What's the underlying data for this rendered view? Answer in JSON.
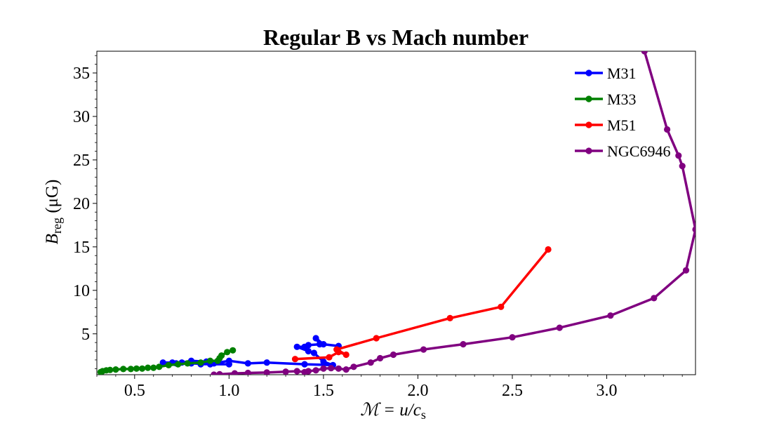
{
  "chart_data": {
    "type": "line",
    "title": "Regular B vs Mach number",
    "xlabel": "ℳ = u/c",
    "xlabel_sub": "s",
    "ylabel": "B",
    "ylabel_sub": "reg",
    "ylabel_unit": " (μG)",
    "xlim": [
      0.3,
      3.47
    ],
    "ylim": [
      0.3,
      37.5
    ],
    "x_ticks": [
      0.5,
      1.0,
      1.5,
      2.0,
      2.5,
      3.0
    ],
    "x_tick_labels": [
      "0.5",
      "1.0",
      "1.5",
      "2.0",
      "2.5",
      "3.0"
    ],
    "y_ticks": [
      5,
      10,
      15,
      20,
      25,
      30,
      35
    ],
    "y_tick_labels": [
      "5",
      "10",
      "15",
      "20",
      "25",
      "30",
      "35"
    ],
    "grid": false,
    "legend_position": "top-right",
    "series": [
      {
        "name": "M31",
        "color": "#0000ff",
        "points": [
          [
            1.58,
            3.6
          ],
          [
            1.5,
            3.8
          ],
          [
            1.46,
            4.5
          ],
          [
            1.48,
            3.8
          ],
          [
            1.42,
            3.7
          ],
          [
            1.4,
            3.5
          ],
          [
            1.36,
            3.5
          ],
          [
            1.42,
            3.0
          ],
          [
            1.45,
            2.8
          ],
          [
            1.5,
            1.8
          ],
          [
            1.55,
            1.4
          ],
          [
            1.4,
            1.5
          ],
          [
            1.2,
            1.7
          ],
          [
            1.1,
            1.6
          ],
          [
            1.0,
            1.9
          ],
          [
            0.92,
            1.6
          ],
          [
            0.85,
            1.5
          ],
          [
            0.88,
            1.8
          ],
          [
            0.8,
            1.9
          ],
          [
            0.75,
            1.7
          ],
          [
            0.7,
            1.7
          ],
          [
            0.65,
            1.7
          ],
          [
            0.72,
            1.6
          ],
          [
            0.8,
            1.6
          ],
          [
            0.9,
            1.5
          ],
          [
            1.0,
            1.5
          ]
        ]
      },
      {
        "name": "M33",
        "color": "#008000",
        "points": [
          [
            1.02,
            3.1
          ],
          [
            0.99,
            2.9
          ],
          [
            0.96,
            2.5
          ],
          [
            0.95,
            2.2
          ],
          [
            0.94,
            1.9
          ],
          [
            0.9,
            1.9
          ],
          [
            0.85,
            1.7
          ],
          [
            0.78,
            1.6
          ],
          [
            0.73,
            1.5
          ],
          [
            0.68,
            1.4
          ],
          [
            0.63,
            1.2
          ],
          [
            0.6,
            1.1
          ],
          [
            0.57,
            1.1
          ],
          [
            0.54,
            1.0
          ],
          [
            0.51,
            1.0
          ],
          [
            0.48,
            0.95
          ],
          [
            0.44,
            0.95
          ],
          [
            0.4,
            0.9
          ],
          [
            0.37,
            0.85
          ],
          [
            0.35,
            0.8
          ],
          [
            0.33,
            0.7
          ],
          [
            0.32,
            0.6
          ]
        ]
      },
      {
        "name": "M51",
        "color": "#ff0000",
        "points": [
          [
            1.35,
            2.1
          ],
          [
            1.53,
            2.3
          ],
          [
            1.58,
            2.9
          ],
          [
            1.62,
            2.6
          ],
          [
            1.57,
            3.2
          ],
          [
            1.78,
            4.5
          ],
          [
            2.17,
            6.8
          ],
          [
            2.44,
            8.1
          ],
          [
            2.69,
            14.7
          ]
        ]
      },
      {
        "name": "NGC6946",
        "color": "#800080",
        "points": [
          [
            0.92,
            0.3
          ],
          [
            0.95,
            0.35
          ],
          [
            1.03,
            0.45
          ],
          [
            1.1,
            0.5
          ],
          [
            1.2,
            0.55
          ],
          [
            1.3,
            0.65
          ],
          [
            1.36,
            0.7
          ],
          [
            1.4,
            0.6
          ],
          [
            1.42,
            0.7
          ],
          [
            1.46,
            0.8
          ],
          [
            1.5,
            1.0
          ],
          [
            1.54,
            1.05
          ],
          [
            1.58,
            1.0
          ],
          [
            1.62,
            0.9
          ],
          [
            1.66,
            1.2
          ],
          [
            1.75,
            1.7
          ],
          [
            1.8,
            2.2
          ],
          [
            1.87,
            2.6
          ],
          [
            2.03,
            3.2
          ],
          [
            2.24,
            3.8
          ],
          [
            2.5,
            4.6
          ],
          [
            2.75,
            5.7
          ],
          [
            3.02,
            7.1
          ],
          [
            3.25,
            9.1
          ],
          [
            3.42,
            12.3
          ],
          [
            3.47,
            17.0
          ],
          [
            3.4,
            24.3
          ],
          [
            3.38,
            25.5
          ],
          [
            3.32,
            28.5
          ],
          [
            3.2,
            37.5
          ]
        ]
      }
    ]
  }
}
